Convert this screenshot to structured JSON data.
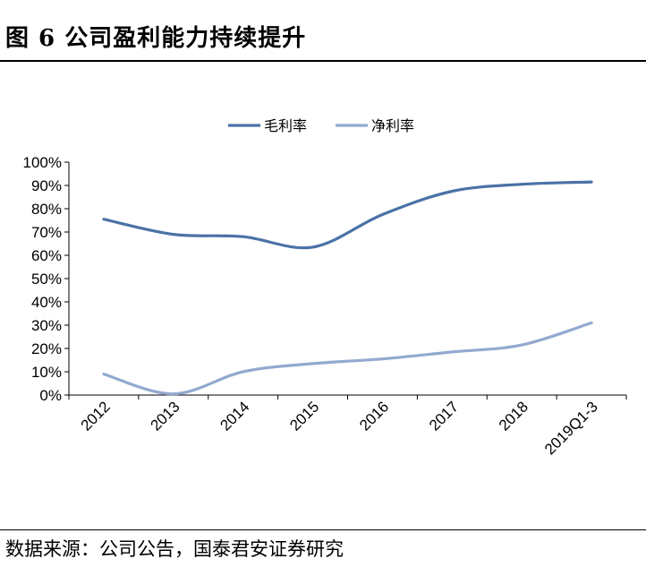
{
  "header": {
    "title": "图 6 公司盈利能力持续提升"
  },
  "footer": {
    "source": "数据来源：公司公告，国泰君安证券研究"
  },
  "chart_data": {
    "type": "line",
    "categories": [
      "2012",
      "2013",
      "2014",
      "2015",
      "2016",
      "2017",
      "2018",
      "2019Q1-3"
    ],
    "series": [
      {
        "name": "毛利率",
        "color": "#4a72a6",
        "values": [
          75.5,
          69.0,
          68.0,
          63.5,
          77.5,
          87.5,
          90.5,
          91.5
        ]
      },
      {
        "name": "净利率",
        "color": "#93a9d0",
        "values": [
          9.0,
          0.5,
          10.0,
          13.5,
          15.5,
          18.5,
          21.5,
          31.0
        ]
      }
    ],
    "yticks": [
      "0%",
      "10%",
      "20%",
      "30%",
      "40%",
      "50%",
      "60%",
      "70%",
      "80%",
      "90%",
      "100%"
    ],
    "ylim": [
      0,
      100
    ],
    "legend": "top-center",
    "grid": false
  }
}
